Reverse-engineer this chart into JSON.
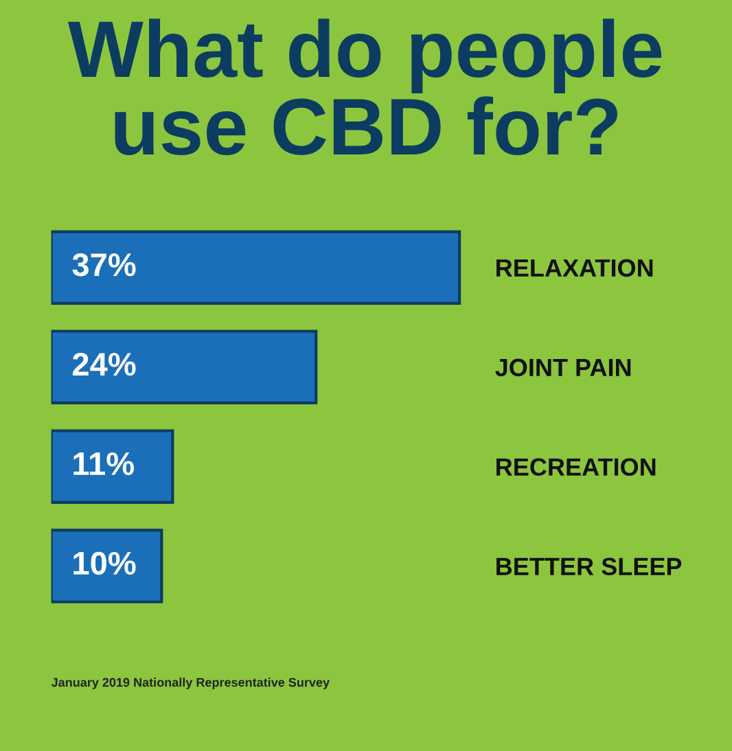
{
  "chart_data": {
    "type": "bar",
    "orientation": "horizontal",
    "title": "What do people use CBD for?",
    "categories": [
      "RELAXATION",
      "JOINT PAIN",
      "RECREATION",
      "BETTER SLEEP"
    ],
    "values": [
      37,
      24,
      11,
      10
    ],
    "value_labels": [
      "37%",
      "24%",
      "11%",
      "10%"
    ],
    "color": "#1b6fb8",
    "annotations": [
      "January 2019 Nationally Representative Survey"
    ]
  }
}
